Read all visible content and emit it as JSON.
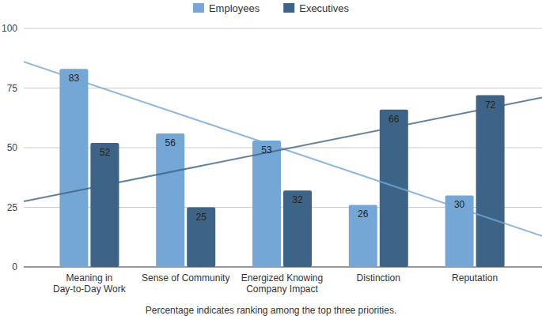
{
  "chart_data": {
    "type": "bar",
    "categories": [
      "Meaning in Day-to-Day Work",
      "Sense of Community",
      "Energized Knowing Company Impact",
      "Distinction",
      "Reputation"
    ],
    "series": [
      {
        "name": "Employees",
        "color": "#74a7d6",
        "values": [
          83,
          56,
          53,
          26,
          30
        ],
        "trend": [
          86,
          13
        ]
      },
      {
        "name": "Executives",
        "color": "#3d6387",
        "values": [
          52,
          25,
          32,
          66,
          72
        ],
        "trend": [
          27.5,
          71
        ]
      }
    ],
    "ylim": [
      0,
      100
    ],
    "yticks": [
      0,
      25,
      50,
      75,
      100
    ],
    "grid": true,
    "legend": "top",
    "data_labels": true,
    "caption": "Percentage indicates ranking among the top three priorities."
  }
}
